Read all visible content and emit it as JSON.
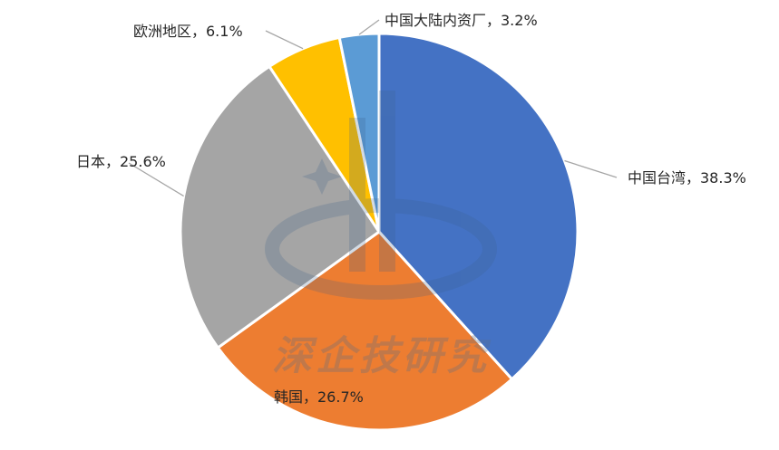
{
  "chart_data": {
    "type": "pie",
    "slices": [
      {
        "name": "中国台湾",
        "value": 38.3,
        "label": "中国台湾，38.3%",
        "color": "#4472c4"
      },
      {
        "name": "韩国",
        "value": 26.7,
        "label": "韩国，26.7%",
        "color": "#ed7d31"
      },
      {
        "name": "日本",
        "value": 25.6,
        "label": "日本，25.6%",
        "color": "#a5a5a5"
      },
      {
        "name": "欧洲地区",
        "value": 6.1,
        "label": "欧洲地区，6.1%",
        "color": "#ffc000"
      },
      {
        "name": "中国大陆内资厂",
        "value": 3.2,
        "label": "中国大陆内资厂，3.2%",
        "color": "#5b9bd5"
      }
    ],
    "unit": "%",
    "legend": "none",
    "data_labels": "outside with leader lines"
  },
  "watermark": {
    "text": "深企技研究",
    "logo_colors": [
      "#4472c4",
      "#ed7d31"
    ]
  }
}
